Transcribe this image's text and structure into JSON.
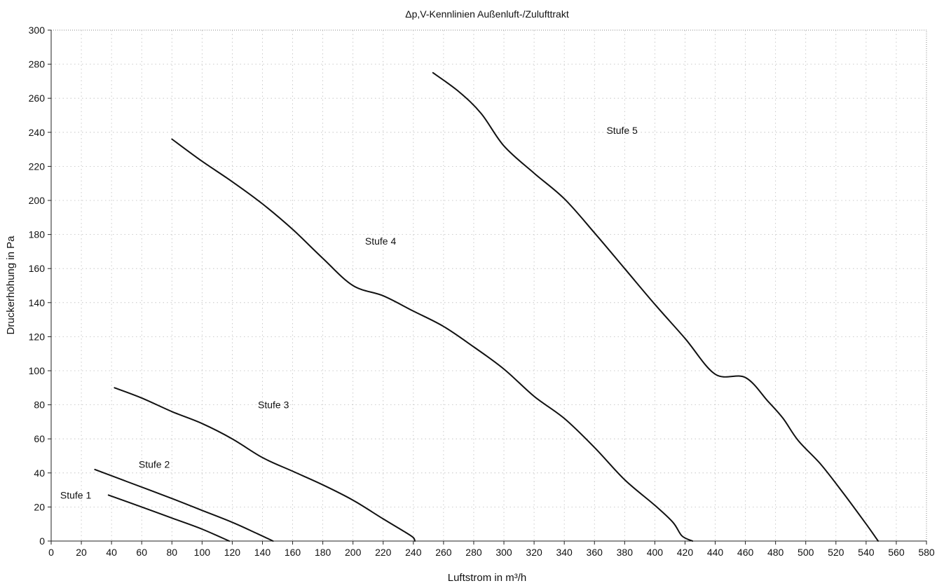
{
  "chart_data": {
    "type": "line",
    "title": "Δp,V-Kennlinien Außenluft-/Zulufttrakt",
    "xlabel": "Luftstrom in m³/h",
    "ylabel": "Druckerhöhung in Pa",
    "xlim": [
      0,
      580
    ],
    "ylim": [
      0,
      300
    ],
    "x_ticks": [
      "0",
      "20",
      "40",
      "60",
      "80",
      "100",
      "120",
      "140",
      "160",
      "180",
      "200",
      "220",
      "240",
      "260",
      "280",
      "300",
      "320",
      "340",
      "360",
      "380",
      "400",
      "420",
      "440",
      "460",
      "480",
      "500",
      "520",
      "540",
      "560",
      "580"
    ],
    "y_ticks": [
      "0",
      "20",
      "40",
      "60",
      "80",
      "100",
      "120",
      "140",
      "160",
      "180",
      "200",
      "220",
      "240",
      "260",
      "280",
      "300"
    ],
    "grid": true,
    "legend": "none (series labelled inline)",
    "series": [
      {
        "name": "Stufe 1",
        "points": [
          [
            38,
            27
          ],
          [
            60,
            20
          ],
          [
            80,
            13.5
          ],
          [
            100,
            7
          ],
          [
            118,
            0
          ]
        ]
      },
      {
        "name": "Stufe 2",
        "points": [
          [
            29,
            42
          ],
          [
            50,
            35
          ],
          [
            80,
            25
          ],
          [
            100,
            18
          ],
          [
            120,
            11
          ],
          [
            135,
            5
          ],
          [
            147,
            0
          ]
        ]
      },
      {
        "name": "Stufe 3",
        "points": [
          [
            42,
            90
          ],
          [
            60,
            84
          ],
          [
            80,
            76
          ],
          [
            100,
            69
          ],
          [
            120,
            60
          ],
          [
            140,
            49
          ],
          [
            160,
            41
          ],
          [
            180,
            33
          ],
          [
            200,
            24
          ],
          [
            220,
            13
          ],
          [
            235,
            5
          ],
          [
            240,
            2
          ],
          [
            241,
            0
          ]
        ]
      },
      {
        "name": "Stufe 4",
        "points": [
          [
            80,
            236
          ],
          [
            100,
            223
          ],
          [
            120,
            211
          ],
          [
            140,
            198
          ],
          [
            160,
            183
          ],
          [
            180,
            166
          ],
          [
            200,
            150
          ],
          [
            220,
            144
          ],
          [
            240,
            135
          ],
          [
            260,
            126
          ],
          [
            280,
            114
          ],
          [
            300,
            101
          ],
          [
            320,
            85
          ],
          [
            340,
            72
          ],
          [
            360,
            55
          ],
          [
            380,
            36
          ],
          [
            400,
            21
          ],
          [
            412,
            11
          ],
          [
            418,
            3
          ],
          [
            425,
            0
          ]
        ]
      },
      {
        "name": "Stufe 5",
        "points": [
          [
            253,
            275
          ],
          [
            270,
            264
          ],
          [
            285,
            251
          ],
          [
            300,
            232
          ],
          [
            320,
            216
          ],
          [
            340,
            201
          ],
          [
            360,
            181
          ],
          [
            380,
            160
          ],
          [
            400,
            139
          ],
          [
            420,
            119
          ],
          [
            440,
            98
          ],
          [
            460,
            96
          ],
          [
            475,
            82
          ],
          [
            485,
            72
          ],
          [
            495,
            59
          ],
          [
            510,
            45
          ],
          [
            525,
            28
          ],
          [
            540,
            10
          ],
          [
            548,
            0
          ]
        ]
      }
    ],
    "series_labels": [
      {
        "text": "Stufe 1",
        "x": 6,
        "y": 25
      },
      {
        "text": "Stufe 2",
        "x": 58,
        "y": 43
      },
      {
        "text": "Stufe 3",
        "x": 137,
        "y": 78
      },
      {
        "text": "Stufe 4",
        "x": 208,
        "y": 174
      },
      {
        "text": "Stufe 5",
        "x": 368,
        "y": 239
      }
    ]
  }
}
